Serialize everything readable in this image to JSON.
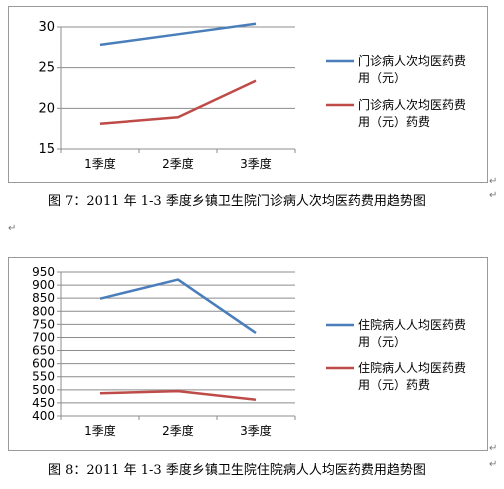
{
  "figures": [
    {
      "caption": "图 7：2011 年 1-3 季度乡镇卫生院门诊病人次均医药费用趋势图",
      "chart_data": {
        "type": "line",
        "categories": [
          "1季度",
          "2季度",
          "3季度"
        ],
        "ylim": [
          15,
          30
        ],
        "yticks": [
          "15",
          "20",
          "25",
          "30"
        ],
        "grid": true,
        "legend_position": "right",
        "series": [
          {
            "name": "门诊病人次均医药费用（元）",
            "values": [
              27.8,
              29.1,
              30.4
            ],
            "color": "#4a7ebb"
          },
          {
            "name": "门诊病人次均医药费用（元）药费",
            "values": [
              18.1,
              18.9,
              23.4
            ],
            "color": "#be4b48"
          }
        ]
      }
    },
    {
      "caption": "图 8：2011 年 1-3 季度乡镇卫生院住院病人人均医药费用趋势图",
      "chart_data": {
        "type": "line",
        "categories": [
          "1季度",
          "2季度",
          "3季度"
        ],
        "ylim": [
          400,
          950
        ],
        "yticks": [
          "400",
          "450",
          "500",
          "550",
          "600",
          "650",
          "700",
          "750",
          "800",
          "850",
          "900",
          "950"
        ],
        "grid": true,
        "legend_position": "right",
        "series": [
          {
            "name": "住院病人人均医药费用（元）",
            "values": [
              848,
              921,
              717
            ],
            "color": "#4a7ebb"
          },
          {
            "name": "住院病人人均医药费用（元）药费",
            "values": [
              487,
              495,
              462
            ],
            "color": "#be4b48"
          }
        ]
      }
    }
  ],
  "paragraph_mark": "↵"
}
